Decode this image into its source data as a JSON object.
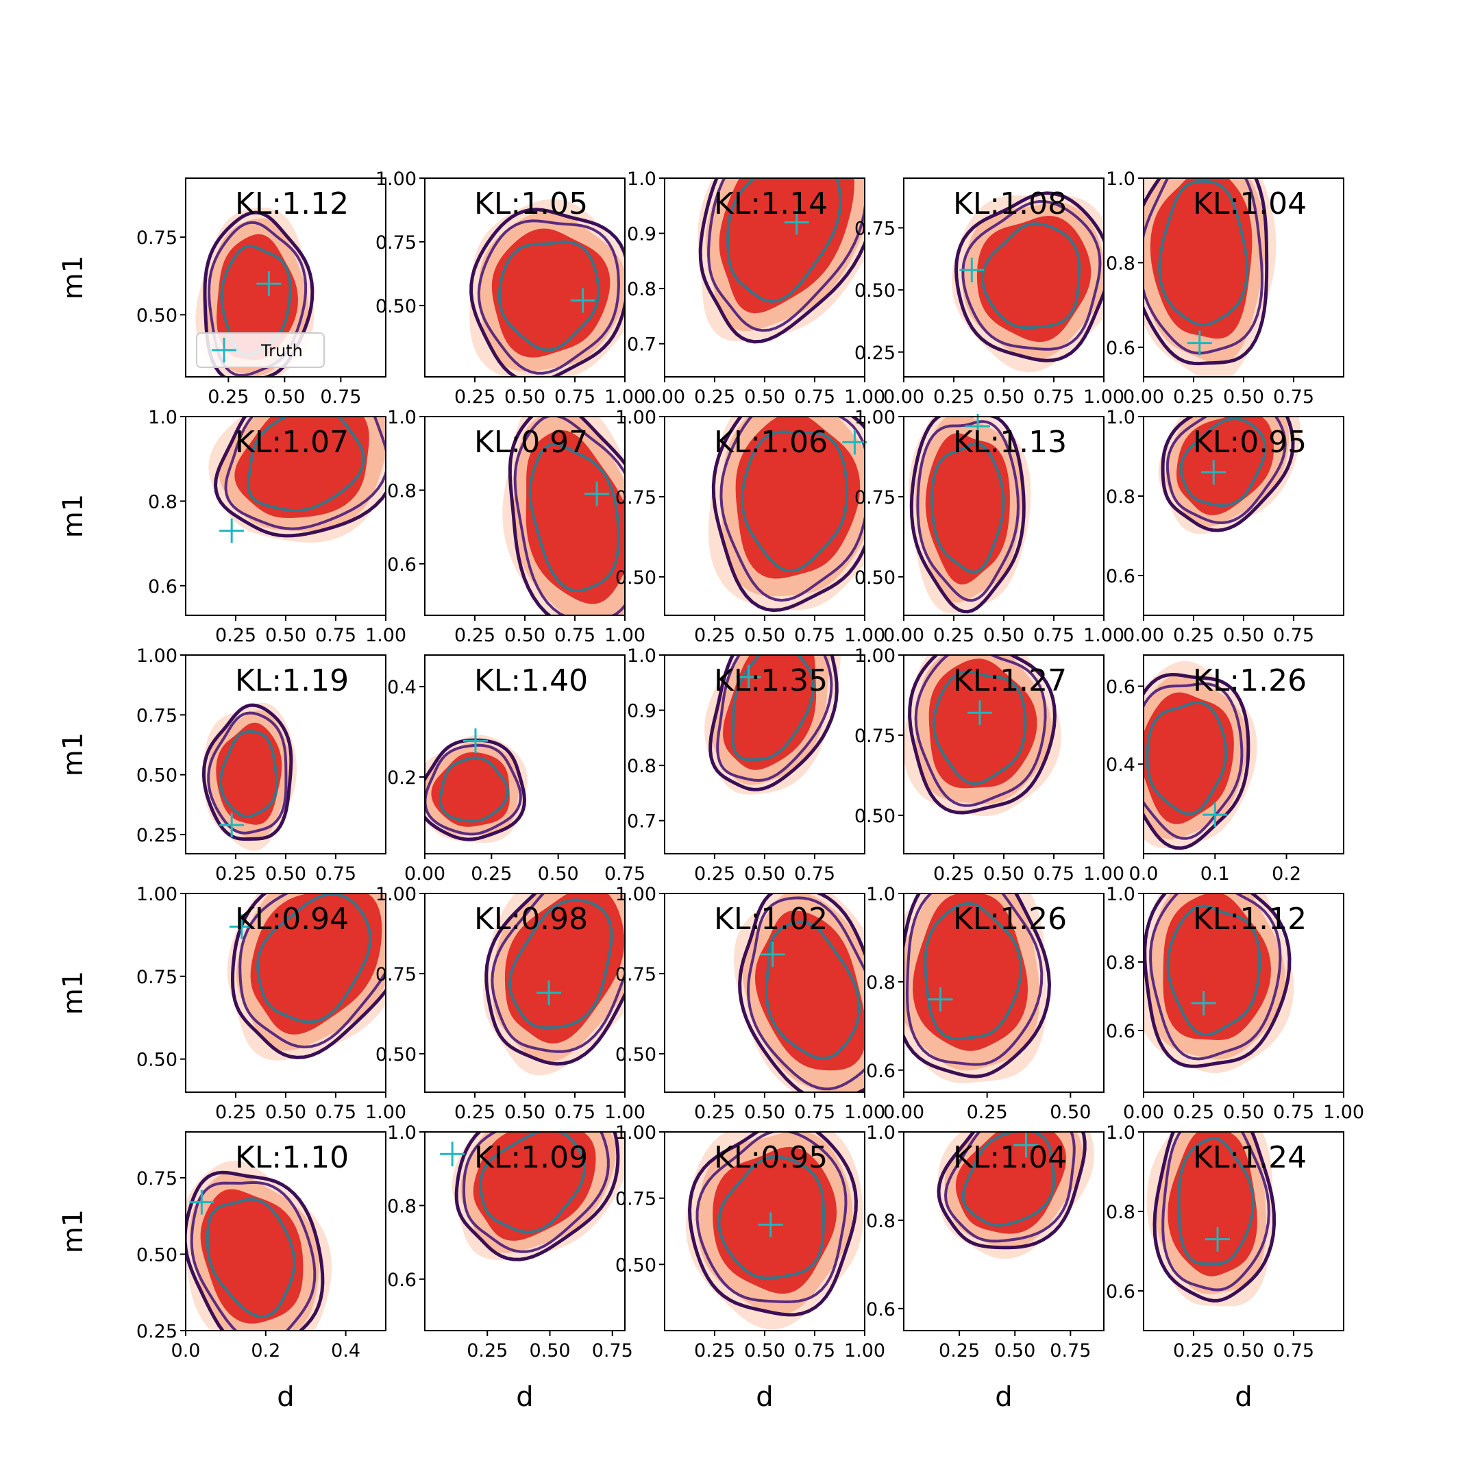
{
  "colors": {
    "fill_outer": "#fde0d2",
    "fill_mid": "#f9b99c",
    "fill_inner": "#e1322b",
    "contour_outer": "#3b0f56",
    "contour_mid": "#5b2c7e",
    "contour_inner": "#31788c",
    "truth": "#1fb6bd"
  },
  "chart_data": {
    "type": "contour-grid",
    "rows": 5,
    "cols": 5,
    "xlabel": "d",
    "ylabel": "m1",
    "legend": {
      "label": "Truth",
      "placement": "lower-left of first panel",
      "marker": "plus"
    },
    "panels": [
      {
        "kl": "KL:1.12",
        "xlim": [
          0.06,
          0.95
        ],
        "ylim": [
          0.3,
          0.94
        ],
        "xticks": [
          "0.25",
          "0.50",
          "0.75"
        ],
        "xtick_values": [
          0.25,
          0.5,
          0.75
        ],
        "yticks": [
          "0.50",
          "0.75"
        ],
        "ytick_values": [
          0.5,
          0.75
        ],
        "truth": [
          0.43,
          0.6
        ],
        "center": [
          0.37,
          0.55
        ],
        "spread": [
          0.22,
          0.27
        ],
        "shape": "blob"
      },
      {
        "kl": "KL:1.05",
        "xlim": [
          0.0,
          1.0
        ],
        "ylim": [
          0.22,
          1.0
        ],
        "xticks": [
          "0.25",
          "0.50",
          "0.75",
          "1.00"
        ],
        "xtick_values": [
          0.25,
          0.5,
          0.75,
          1.0
        ],
        "yticks": [
          "0.50",
          "0.75",
          "1.00"
        ],
        "ytick_values": [
          0.5,
          0.75,
          1.0
        ],
        "truth": [
          0.79,
          0.52
        ],
        "center": [
          0.62,
          0.55
        ],
        "spread": [
          0.36,
          0.33
        ],
        "shape": "blob"
      },
      {
        "kl": "KL:1.14",
        "xlim": [
          0.0,
          1.0
        ],
        "ylim": [
          0.64,
          1.0
        ],
        "xticks": [
          "0.00",
          "0.25",
          "0.50",
          "0.75",
          "1.00"
        ],
        "xtick_values": [
          0.0,
          0.25,
          0.5,
          0.75,
          1.0
        ],
        "yticks": [
          "0.7",
          "0.8",
          "0.9",
          "1.0"
        ],
        "ytick_values": [
          0.7,
          0.8,
          0.9,
          1.0
        ],
        "truth": [
          0.66,
          0.92
        ],
        "center": [
          0.55,
          0.9
        ],
        "spread": [
          0.4,
          0.2
        ],
        "shape": "triangle-up"
      },
      {
        "kl": "KL:1.08",
        "xlim": [
          0.0,
          1.0
        ],
        "ylim": [
          0.15,
          0.95
        ],
        "xticks": [
          "0.00",
          "0.25",
          "0.50",
          "0.75",
          "1.00"
        ],
        "xtick_values": [
          0.0,
          0.25,
          0.5,
          0.75,
          1.0
        ],
        "yticks": [
          "0.25",
          "0.50",
          "0.75"
        ],
        "ytick_values": [
          0.25,
          0.5,
          0.75
        ],
        "truth": [
          0.34,
          0.58
        ],
        "center": [
          0.65,
          0.55
        ],
        "spread": [
          0.35,
          0.33
        ],
        "shape": "blob"
      },
      {
        "kl": "KL:1.04",
        "xlim": [
          0.0,
          1.0
        ],
        "ylim": [
          0.53,
          1.0
        ],
        "xticks": [
          "0.00",
          "0.25",
          "0.50",
          "0.75"
        ],
        "xtick_values": [
          0.0,
          0.25,
          0.5,
          0.75
        ],
        "yticks": [
          "0.6",
          "0.8",
          "1.0"
        ],
        "ytick_values": [
          0.6,
          0.8,
          1.0
        ],
        "truth": [
          0.28,
          0.61
        ],
        "center": [
          0.3,
          0.82
        ],
        "spread": [
          0.3,
          0.28
        ],
        "shape": "column"
      },
      {
        "kl": "KL:1.07",
        "xlim": [
          0.0,
          1.0
        ],
        "ylim": [
          0.53,
          1.0
        ],
        "xticks": [
          "0.25",
          "0.50",
          "0.75",
          "1.00"
        ],
        "xtick_values": [
          0.25,
          0.5,
          0.75,
          1.0
        ],
        "yticks": [
          "0.6",
          "0.8",
          "1.0"
        ],
        "ytick_values": [
          0.6,
          0.8,
          1.0
        ],
        "truth": [
          0.23,
          0.73
        ],
        "center": [
          0.55,
          0.88
        ],
        "spread": [
          0.42,
          0.18
        ],
        "shape": "triangle-up"
      },
      {
        "kl": "KL:0.97",
        "xlim": [
          0.0,
          1.0
        ],
        "ylim": [
          0.46,
          1.0
        ],
        "xticks": [
          "0.25",
          "0.50",
          "0.75",
          "1.00"
        ],
        "xtick_values": [
          0.25,
          0.5,
          0.75,
          1.0
        ],
        "yticks": [
          "0.6",
          "0.8",
          "1.0"
        ],
        "ytick_values": [
          0.6,
          0.8,
          1.0
        ],
        "truth": [
          0.86,
          0.79
        ],
        "center": [
          0.72,
          0.75
        ],
        "spread": [
          0.32,
          0.3
        ],
        "shape": "triangle-down"
      },
      {
        "kl": "KL:1.06",
        "xlim": [
          0.0,
          1.0
        ],
        "ylim": [
          0.38,
          1.0
        ],
        "xticks": [
          "0.25",
          "0.50",
          "0.75",
          "1.00"
        ],
        "xtick_values": [
          0.25,
          0.5,
          0.75,
          1.0
        ],
        "yticks": [
          "0.50",
          "0.75",
          "1.00"
        ],
        "ytick_values": [
          0.5,
          0.75,
          1.0
        ],
        "truth": [
          0.95,
          0.92
        ],
        "center": [
          0.65,
          0.75
        ],
        "spread": [
          0.38,
          0.34
        ],
        "shape": "blob"
      },
      {
        "kl": "KL:1.13",
        "xlim": [
          0.0,
          1.0
        ],
        "ylim": [
          0.38,
          1.0
        ],
        "xticks": [
          "0.00",
          "0.25",
          "0.50",
          "0.75",
          "1.00"
        ],
        "xtick_values": [
          0.0,
          0.25,
          0.5,
          0.75,
          1.0
        ],
        "yticks": [
          "0.50",
          "0.75",
          "1.00"
        ],
        "ytick_values": [
          0.5,
          0.75,
          1.0
        ],
        "truth": [
          0.37,
          0.97
        ],
        "center": [
          0.32,
          0.72
        ],
        "spread": [
          0.25,
          0.32
        ],
        "shape": "column"
      },
      {
        "kl": "KL:0.95",
        "xlim": [
          0.0,
          1.0
        ],
        "ylim": [
          0.5,
          1.0
        ],
        "xticks": [
          "0.00",
          "0.25",
          "0.50",
          "0.75"
        ],
        "xtick_values": [
          0.0,
          0.25,
          0.5,
          0.75
        ],
        "yticks": [
          "0.6",
          "0.8",
          "1.0"
        ],
        "ytick_values": [
          0.6,
          0.8,
          1.0
        ],
        "truth": [
          0.35,
          0.86
        ],
        "center": [
          0.37,
          0.87
        ],
        "spread": [
          0.3,
          0.16
        ],
        "shape": "triangle-up"
      },
      {
        "kl": "KL:1.19",
        "xlim": [
          0.0,
          1.0
        ],
        "ylim": [
          0.17,
          1.0
        ],
        "xticks": [
          "0.25",
          "0.50",
          "0.75"
        ],
        "xtick_values": [
          0.25,
          0.5,
          0.75
        ],
        "yticks": [
          "0.25",
          "0.50",
          "0.75",
          "1.00"
        ],
        "ytick_values": [
          0.25,
          0.5,
          0.75,
          1.0
        ],
        "truth": [
          0.23,
          0.29
        ],
        "center": [
          0.32,
          0.5
        ],
        "spread": [
          0.2,
          0.28
        ],
        "shape": "blob"
      },
      {
        "kl": "KL:1.40",
        "xlim": [
          0.0,
          0.75
        ],
        "ylim": [
          0.03,
          0.47
        ],
        "xticks": [
          "0.00",
          "0.25",
          "0.50",
          "0.75"
        ],
        "xtick_values": [
          0.0,
          0.25,
          0.5,
          0.75
        ],
        "yticks": [
          "0.2",
          "0.4"
        ],
        "ytick_values": [
          0.2,
          0.4
        ],
        "truth": [
          0.19,
          0.28
        ],
        "center": [
          0.18,
          0.17
        ],
        "spread": [
          0.18,
          0.11
        ],
        "shape": "blob"
      },
      {
        "kl": "KL:1.35",
        "xlim": [
          0.0,
          1.0
        ],
        "ylim": [
          0.64,
          1.0
        ],
        "xticks": [
          "0.25",
          "0.50",
          "0.75"
        ],
        "xtick_values": [
          0.25,
          0.5,
          0.75
        ],
        "yticks": [
          "0.7",
          "0.8",
          "0.9",
          "1.0"
        ],
        "ytick_values": [
          0.7,
          0.8,
          0.9,
          1.0
        ],
        "truth": [
          0.42,
          0.96
        ],
        "center": [
          0.5,
          0.9
        ],
        "spread": [
          0.28,
          0.16
        ],
        "shape": "triangle-up"
      },
      {
        "kl": "KL:1.27",
        "xlim": [
          0.0,
          1.0
        ],
        "ylim": [
          0.38,
          1.0
        ],
        "xticks": [
          "0.25",
          "0.50",
          "0.75",
          "1.00"
        ],
        "xtick_values": [
          0.25,
          0.5,
          0.75,
          1.0
        ],
        "yticks": [
          "0.50",
          "0.75",
          "1.00"
        ],
        "ytick_values": [
          0.5,
          0.75,
          1.0
        ],
        "truth": [
          0.38,
          0.82
        ],
        "center": [
          0.38,
          0.78
        ],
        "spread": [
          0.32,
          0.28
        ],
        "shape": "column"
      },
      {
        "kl": "KL:1.26",
        "xlim": [
          0.0,
          0.28
        ],
        "ylim": [
          0.17,
          0.68
        ],
        "xticks": [
          "0.0",
          "0.1",
          "0.2"
        ],
        "xtick_values": [
          0.0,
          0.1,
          0.2
        ],
        "yticks": [
          "0.4",
          "0.6"
        ],
        "ytick_values": [
          0.4,
          0.6
        ],
        "truth": [
          0.1,
          0.27
        ],
        "center": [
          0.06,
          0.42
        ],
        "spread": [
          0.08,
          0.22
        ],
        "shape": "blob"
      },
      {
        "kl": "KL:0.94",
        "xlim": [
          0.0,
          1.0
        ],
        "ylim": [
          0.4,
          1.0
        ],
        "xticks": [
          "0.25",
          "0.50",
          "0.75",
          "1.00"
        ],
        "xtick_values": [
          0.25,
          0.5,
          0.75,
          1.0
        ],
        "yticks": [
          "0.50",
          "0.75",
          "1.00"
        ],
        "ytick_values": [
          0.5,
          0.75,
          1.0
        ],
        "truth": [
          0.28,
          0.9
        ],
        "center": [
          0.6,
          0.78
        ],
        "spread": [
          0.4,
          0.28
        ],
        "shape": "triangle-up"
      },
      {
        "kl": "KL:0.98",
        "xlim": [
          0.0,
          1.0
        ],
        "ylim": [
          0.38,
          1.0
        ],
        "xticks": [
          "0.25",
          "0.50",
          "0.75",
          "1.00"
        ],
        "xtick_values": [
          0.25,
          0.5,
          0.75,
          1.0
        ],
        "yticks": [
          "0.50",
          "0.75",
          "1.00"
        ],
        "ytick_values": [
          0.5,
          0.75,
          1.0
        ],
        "truth": [
          0.62,
          0.69
        ],
        "center": [
          0.65,
          0.75
        ],
        "spread": [
          0.36,
          0.3
        ],
        "shape": "triangle-up"
      },
      {
        "kl": "KL:1.02",
        "xlim": [
          0.0,
          1.0
        ],
        "ylim": [
          0.38,
          1.0
        ],
        "xticks": [
          "0.25",
          "0.50",
          "0.75",
          "1.00"
        ],
        "xtick_values": [
          0.25,
          0.5,
          0.75,
          1.0
        ],
        "yticks": [
          "0.50",
          "0.75",
          "1.00"
        ],
        "ytick_values": [
          0.5,
          0.75,
          1.0
        ],
        "truth": [
          0.54,
          0.81
        ],
        "center": [
          0.7,
          0.72
        ],
        "spread": [
          0.33,
          0.32
        ],
        "shape": "triangle-down"
      },
      {
        "kl": "KL:1.26",
        "xlim": [
          0.0,
          0.6
        ],
        "ylim": [
          0.55,
          1.0
        ],
        "xticks": [
          "0.00",
          "0.25",
          "0.50"
        ],
        "xtick_values": [
          0.0,
          0.25,
          0.5
        ],
        "yticks": [
          "0.6",
          "0.8",
          "1.0"
        ],
        "ytick_values": [
          0.6,
          0.8,
          1.0
        ],
        "truth": [
          0.11,
          0.76
        ],
        "center": [
          0.2,
          0.82
        ],
        "spread": [
          0.2,
          0.25
        ],
        "shape": "column"
      },
      {
        "kl": "KL:1.12",
        "xlim": [
          0.0,
          1.0
        ],
        "ylim": [
          0.42,
          1.0
        ],
        "xticks": [
          "0.00",
          "0.25",
          "0.50",
          "0.75",
          "1.00"
        ],
        "xtick_values": [
          0.0,
          0.25,
          0.5,
          0.75,
          1.0
        ],
        "yticks": [
          "0.6",
          "0.8",
          "1.0"
        ],
        "ytick_values": [
          0.6,
          0.8,
          1.0
        ],
        "truth": [
          0.3,
          0.68
        ],
        "center": [
          0.35,
          0.78
        ],
        "spread": [
          0.32,
          0.3
        ],
        "shape": "column"
      },
      {
        "kl": "KL:1.10",
        "xlim": [
          0.0,
          0.5
        ],
        "ylim": [
          0.25,
          0.9
        ],
        "xticks": [
          "0.0",
          "0.2",
          "0.4"
        ],
        "xtick_values": [
          0.0,
          0.2,
          0.4
        ],
        "yticks": [
          "0.25",
          "0.50",
          "0.75"
        ],
        "ytick_values": [
          0.25,
          0.5,
          0.75
        ],
        "truth": [
          0.04,
          0.67
        ],
        "center": [
          0.15,
          0.52
        ],
        "spread": [
          0.16,
          0.28
        ],
        "shape": "triangle-down"
      },
      {
        "kl": "KL:1.09",
        "xlim": [
          0.0,
          0.8
        ],
        "ylim": [
          0.46,
          1.0
        ],
        "xticks": [
          "0.25",
          "0.50",
          "0.75"
        ],
        "xtick_values": [
          0.25,
          0.5,
          0.75
        ],
        "yticks": [
          "0.6",
          "0.8",
          "1.0"
        ],
        "ytick_values": [
          0.6,
          0.8,
          1.0
        ],
        "truth": [
          0.11,
          0.94
        ],
        "center": [
          0.4,
          0.85
        ],
        "spread": [
          0.3,
          0.2
        ],
        "shape": "triangle-up"
      },
      {
        "kl": "KL:0.95",
        "xlim": [
          0.0,
          1.0
        ],
        "ylim": [
          0.25,
          1.0
        ],
        "xticks": [
          "0.25",
          "0.50",
          "0.75",
          "1.00"
        ],
        "xtick_values": [
          0.25,
          0.5,
          0.75,
          1.0
        ],
        "yticks": [
          "0.50",
          "0.75",
          "1.00"
        ],
        "ytick_values": [
          0.5,
          0.75,
          1.0
        ],
        "truth": [
          0.53,
          0.65
        ],
        "center": [
          0.55,
          0.67
        ],
        "spread": [
          0.38,
          0.36
        ],
        "shape": "blob"
      },
      {
        "kl": "KL:1.04",
        "xlim": [
          0.0,
          0.9
        ],
        "ylim": [
          0.55,
          1.0
        ],
        "xticks": [
          "0.25",
          "0.50",
          "0.75"
        ],
        "xtick_values": [
          0.25,
          0.5,
          0.75
        ],
        "yticks": [
          "0.6",
          "0.8",
          "1.0"
        ],
        "ytick_values": [
          0.6,
          0.8,
          1.0
        ],
        "truth": [
          0.55,
          0.97
        ],
        "center": [
          0.45,
          0.88
        ],
        "spread": [
          0.3,
          0.16
        ],
        "shape": "triangle-up"
      },
      {
        "kl": "KL:1.24",
        "xlim": [
          0.0,
          1.0
        ],
        "ylim": [
          0.5,
          1.0
        ],
        "xticks": [
          "0.25",
          "0.50",
          "0.75"
        ],
        "xtick_values": [
          0.25,
          0.5,
          0.75
        ],
        "yticks": [
          "0.6",
          "0.8",
          "1.0"
        ],
        "ytick_values": [
          0.6,
          0.8,
          1.0
        ],
        "truth": [
          0.37,
          0.73
        ],
        "center": [
          0.35,
          0.82
        ],
        "spread": [
          0.26,
          0.26
        ],
        "shape": "column"
      }
    ]
  }
}
